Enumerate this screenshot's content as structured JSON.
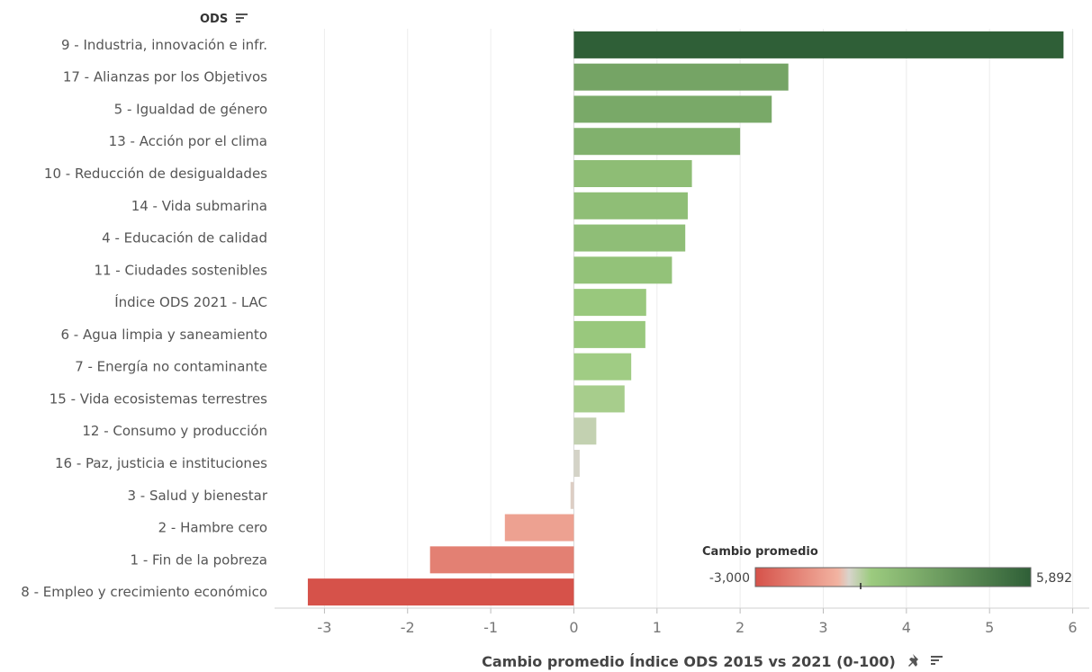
{
  "header": {
    "dimension_label": "ODS"
  },
  "chart_data": {
    "type": "bar",
    "orientation": "horizontal",
    "categories": [
      "9 - Industria, innovación e infr.",
      "17 - Alianzas por los Objetivos",
      "5 - Igualdad de género",
      "13 - Acción por el clima",
      "10 - Reducción de desigualdades",
      "14 - Vida submarina",
      "4 - Educación de calidad",
      "11 - Ciudades sostenibles",
      "Índice ODS 2021 - LAC",
      "6 - Agua limpia y saneamiento",
      "7 - Energía no contaminante",
      "15 - Vida ecosistemas terrestres",
      "12 - Consumo y producción",
      "16 - Paz, justicia e instituciones",
      "3 - Salud y bienestar",
      "2 - Hambre cero",
      "1 - Fin de la pobreza",
      "8 - Empleo y crecimiento económico"
    ],
    "values": [
      5.89,
      2.58,
      2.38,
      2.0,
      1.42,
      1.37,
      1.34,
      1.18,
      0.87,
      0.86,
      0.69,
      0.61,
      0.27,
      0.07,
      -0.04,
      -0.83,
      -1.73,
      -3.2
    ],
    "xlabel": "Cambio promedio Índice ODS 2015 vs 2021 (0-100)",
    "ylabel": "",
    "xlim": [
      -3.6,
      6.2
    ],
    "xticks": [
      -3,
      -2,
      -1,
      0,
      1,
      2,
      3,
      4,
      5,
      6
    ],
    "grid": true,
    "color_scale": {
      "title": "Cambio promedio",
      "min_label": "-3,000",
      "max_label": "5,892",
      "min": -3.0,
      "max": 5.892,
      "colors": [
        "#d6524a",
        "#f2b3a1",
        "#d8d4cc",
        "#9ccb7f",
        "#2f5f37"
      ]
    },
    "legend_position": "bottom-right"
  }
}
